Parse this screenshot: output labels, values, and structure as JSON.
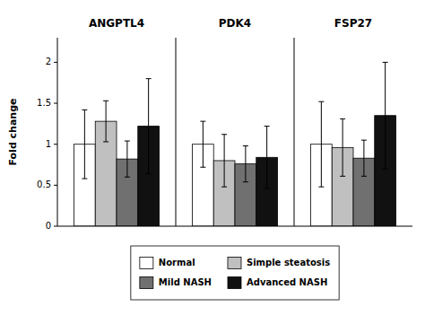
{
  "chart_data": {
    "type": "bar",
    "categories": [
      "ANGPTL4",
      "PDK4",
      "FSP27"
    ],
    "series": [
      {
        "name": "Normal",
        "color": "#ffffff",
        "values": [
          1.0,
          1.0,
          1.0
        ],
        "errors": [
          0.42,
          0.28,
          0.52
        ]
      },
      {
        "name": "Simple steatosis",
        "color": "#c0c0c0",
        "values": [
          1.28,
          0.8,
          0.96
        ],
        "errors": [
          0.25,
          0.32,
          0.35
        ]
      },
      {
        "name": "Mild NASH",
        "color": "#707070",
        "values": [
          0.82,
          0.76,
          0.83
        ],
        "errors": [
          0.22,
          0.22,
          0.22
        ]
      },
      {
        "name": "Advanced NASH",
        "color": "#111111",
        "values": [
          1.22,
          0.84,
          1.35
        ],
        "errors": [
          0.58,
          0.38,
          0.65
        ]
      }
    ],
    "ylabel": "Fold change",
    "ylim": [
      0,
      2.3
    ],
    "yticks": [
      0,
      0.5,
      1,
      1.5,
      2
    ],
    "grid": false,
    "legend": "bottom"
  }
}
